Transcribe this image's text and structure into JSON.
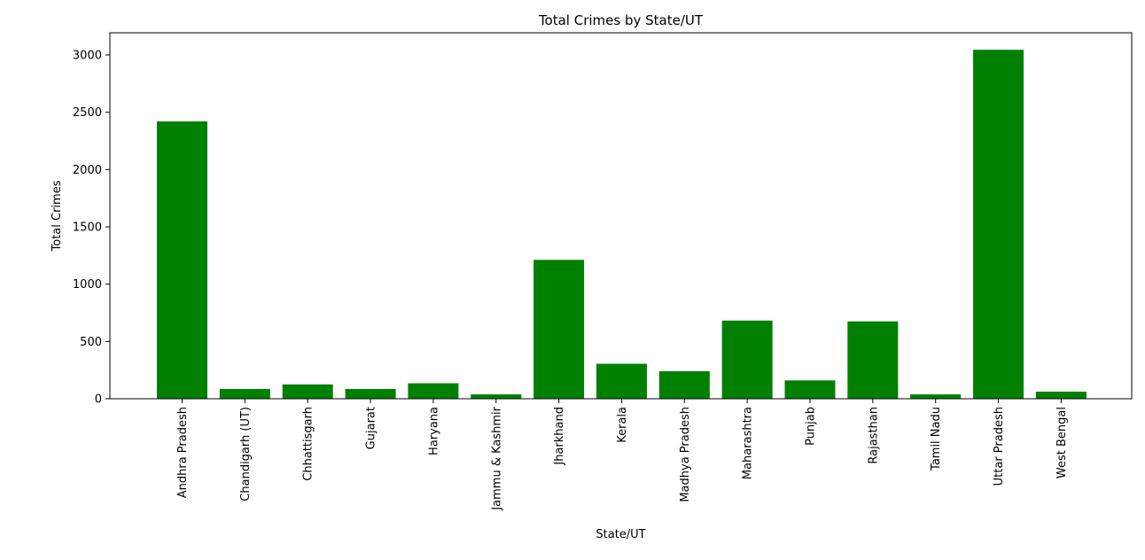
{
  "chart_data": {
    "type": "bar",
    "title": "Total Crimes by State/UT",
    "xlabel": "State/UT",
    "ylabel": "Total Crimes",
    "categories": [
      "Andhra Pradesh",
      "Chandigarh (UT)",
      "Chhattisgarh",
      "Gujarat",
      "Haryana",
      "Jammu & Kashmir",
      "Jharkhand",
      "Kerala",
      "Madhya Pradesh",
      "Maharashtra",
      "Punjab",
      "Rajasthan",
      "Tamil Nadu",
      "Uttar Pradesh",
      "West Bengal"
    ],
    "values": [
      2420,
      85,
      125,
      85,
      135,
      38,
      1212,
      305,
      240,
      682,
      160,
      675,
      38,
      3045,
      62
    ],
    "ylim": [
      0,
      3200
    ],
    "yticks": [
      0,
      500,
      1000,
      1500,
      2000,
      2500,
      3000
    ],
    "bar_color": "#008000",
    "grid": false,
    "legend": "none"
  }
}
